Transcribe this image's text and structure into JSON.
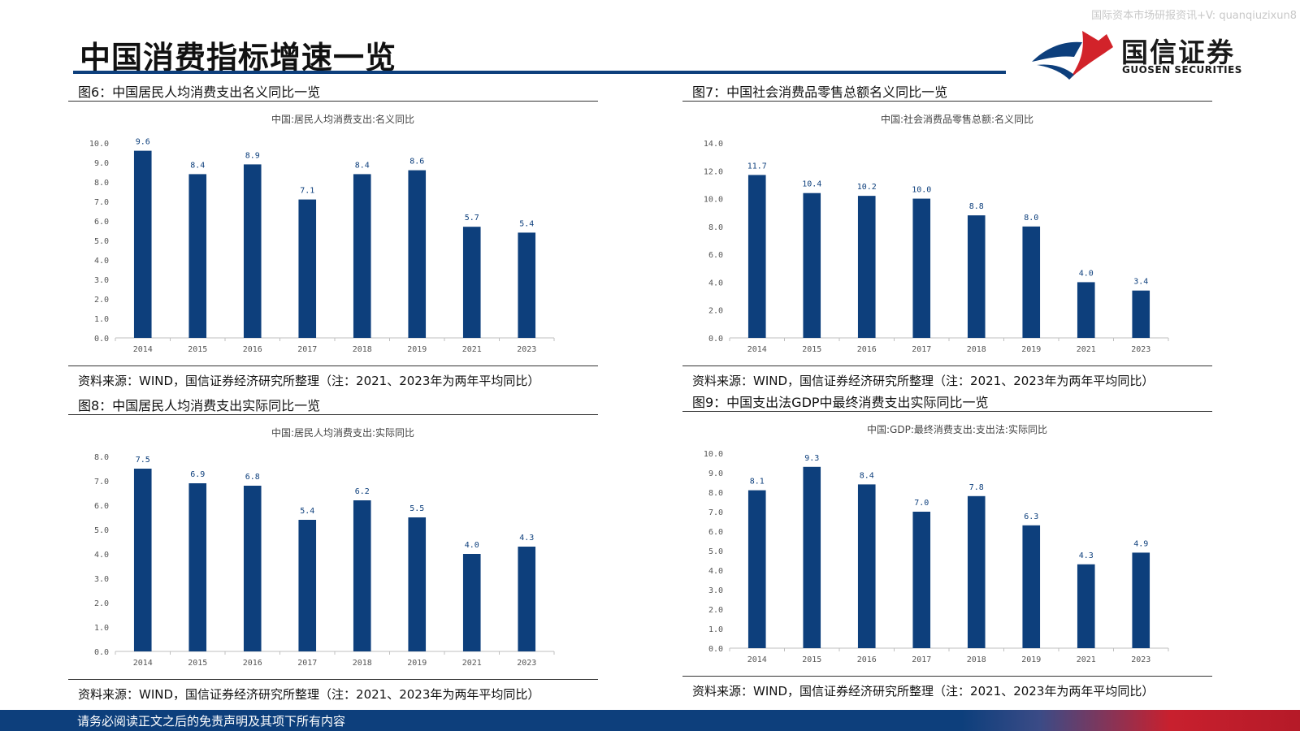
{
  "watermark": "国际资本市场研报资讯+V: quanqiuzixun8",
  "page_title": "中国消费指标增速一览",
  "logo": {
    "cn": "国信证券",
    "en": "GUOSEN SECURITIES",
    "colors": {
      "red": "#d2232a",
      "blue": "#0d3f7c"
    }
  },
  "footer": "请务必阅读正文之后的免责声明及其项下所有内容",
  "colors": {
    "bar": "#0d3f7c",
    "accent": "#0d3f7c"
  },
  "panels": [
    {
      "title": "图6：中国居民人均消费支出名义同比一览",
      "source": "资料来源：WIND，国信证券经济研究所整理（注：2021、2023年为两年平均同比）"
    },
    {
      "title": "图7：中国社会消费品零售总额名义同比一览",
      "source": "资料来源：WIND，国信证券经济研究所整理（注：2021、2023年为两年平均同比）"
    },
    {
      "title": "图8：中国居民人均消费支出实际同比一览",
      "source": "资料来源：WIND，国信证券经济研究所整理（注：2021、2023年为两年平均同比）"
    },
    {
      "title": "图9：中国支出法GDP中最终消费支出实际同比一览",
      "source": "资料来源：WIND，国信证券经济研究所整理（注：2021、2023年为两年平均同比）"
    }
  ],
  "chart_data": [
    {
      "type": "bar",
      "title": "中国:居民人均消费支出:名义同比",
      "categories": [
        "2014",
        "2015",
        "2016",
        "2017",
        "2018",
        "2019",
        "2021",
        "2023"
      ],
      "values": [
        9.6,
        8.4,
        8.9,
        7.1,
        8.4,
        8.6,
        5.7,
        5.4
      ],
      "ylim": [
        0,
        10
      ],
      "yticks": [
        "0.0",
        "1.0",
        "2.0",
        "3.0",
        "4.0",
        "5.0",
        "6.0",
        "7.0",
        "8.0",
        "9.0",
        "10.0"
      ],
      "grid": false,
      "legend": "none"
    },
    {
      "type": "bar",
      "title": "中国:社会消费品零售总额:名义同比",
      "categories": [
        "2014",
        "2015",
        "2016",
        "2017",
        "2018",
        "2019",
        "2021",
        "2023"
      ],
      "values": [
        11.7,
        10.4,
        10.2,
        10.0,
        8.8,
        8.0,
        4.0,
        3.4
      ],
      "ylim": [
        0,
        14
      ],
      "yticks": [
        "0.0",
        "2.0",
        "4.0",
        "6.0",
        "8.0",
        "10.0",
        "12.0",
        "14.0"
      ],
      "grid": false,
      "legend": "none"
    },
    {
      "type": "bar",
      "title": "中国:居民人均消费支出:实际同比",
      "categories": [
        "2014",
        "2015",
        "2016",
        "2017",
        "2018",
        "2019",
        "2021",
        "2023"
      ],
      "values": [
        7.5,
        6.9,
        6.8,
        5.4,
        6.2,
        5.5,
        4.0,
        4.3
      ],
      "ylim": [
        0,
        8
      ],
      "yticks": [
        "0.0",
        "1.0",
        "2.0",
        "3.0",
        "4.0",
        "5.0",
        "6.0",
        "7.0",
        "8.0"
      ],
      "grid": false,
      "legend": "none"
    },
    {
      "type": "bar",
      "title": "中国:GDP:最终消费支出:支出法:实际同比",
      "categories": [
        "2014",
        "2015",
        "2016",
        "2017",
        "2018",
        "2019",
        "2021",
        "2023"
      ],
      "values": [
        8.1,
        9.3,
        8.4,
        7.0,
        7.8,
        6.3,
        4.3,
        4.9
      ],
      "ylim": [
        0,
        10
      ],
      "yticks": [
        "0.0",
        "1.0",
        "2.0",
        "3.0",
        "4.0",
        "5.0",
        "6.0",
        "7.0",
        "8.0",
        "9.0",
        "10.0"
      ],
      "grid": false,
      "legend": "none"
    }
  ]
}
